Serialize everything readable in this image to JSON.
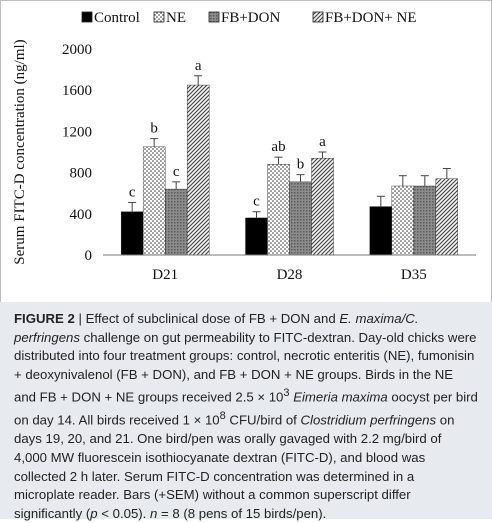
{
  "chart_data": {
    "type": "bar",
    "categories": [
      "D21",
      "D28",
      "D35"
    ],
    "ylabel": "Serum FITC-D concentration (ng/ml)",
    "ylim": [
      0,
      2000
    ],
    "yticks": [
      0,
      400,
      800,
      1200,
      1600,
      2000
    ],
    "legend_position": "top",
    "series": [
      {
        "name": "Control",
        "pattern": "solid-black",
        "values": [
          420,
          360,
          470
        ],
        "errors": [
          90,
          60,
          100
        ],
        "letters": [
          "c",
          "c",
          ""
        ]
      },
      {
        "name": "NE",
        "pattern": "dots",
        "values": [
          1050,
          880,
          670
        ],
        "errors": [
          80,
          70,
          100
        ],
        "letters": [
          "b",
          "ab",
          ""
        ]
      },
      {
        "name": "FB+DON",
        "pattern": "grey-hatch",
        "values": [
          640,
          710,
          670
        ],
        "errors": [
          70,
          70,
          100
        ],
        "letters": [
          "c",
          "b",
          ""
        ]
      },
      {
        "name": "FB+DON+ NE",
        "pattern": "diagonal-hatch",
        "values": [
          1650,
          940,
          740
        ],
        "errors": [
          90,
          60,
          100
        ],
        "letters": [
          "a",
          "a",
          ""
        ]
      }
    ]
  },
  "caption": {
    "label": "FIGURE 2",
    "separator": " | ",
    "t1": "Effect of subclinical dose of FB + DON and ",
    "i1": "E. maxima/C. perfringens",
    "t2": " challenge on gut permeability to FITC-dextran. Day-old chicks were distributed into four treatment groups: control, necrotic enteritis (NE), fumonisin + deoxynivalenol (FB + DON), and FB + DON + NE groups. Birds in the NE and FB + DON + NE groups received 2.5 × 10",
    "sup1": "3",
    "t2b": " ",
    "i2": "Eimeria maxima",
    "t3": " oocyst per bird on day 14. All birds received 1 × 10",
    "sup2": "8",
    "t4": " CFU/bird of ",
    "i3": "Clostridium perfringens",
    "t5": " on days 19, 20, and 21. One bird/pen was orally gavaged with 2.2 mg/bird of 4,000 MW fluorescein isothiocyanate dextran (FITC-D), and blood was collected 2 h later. Serum FITC-D concentration was determined in a microplate reader. Bars (+SEM) without a common superscript differ significantly (",
    "i4": "p",
    "t6": " < 0.05). ",
    "i5": "n",
    "t7": " = 8 (8 pens of 15 birds/pen)."
  }
}
